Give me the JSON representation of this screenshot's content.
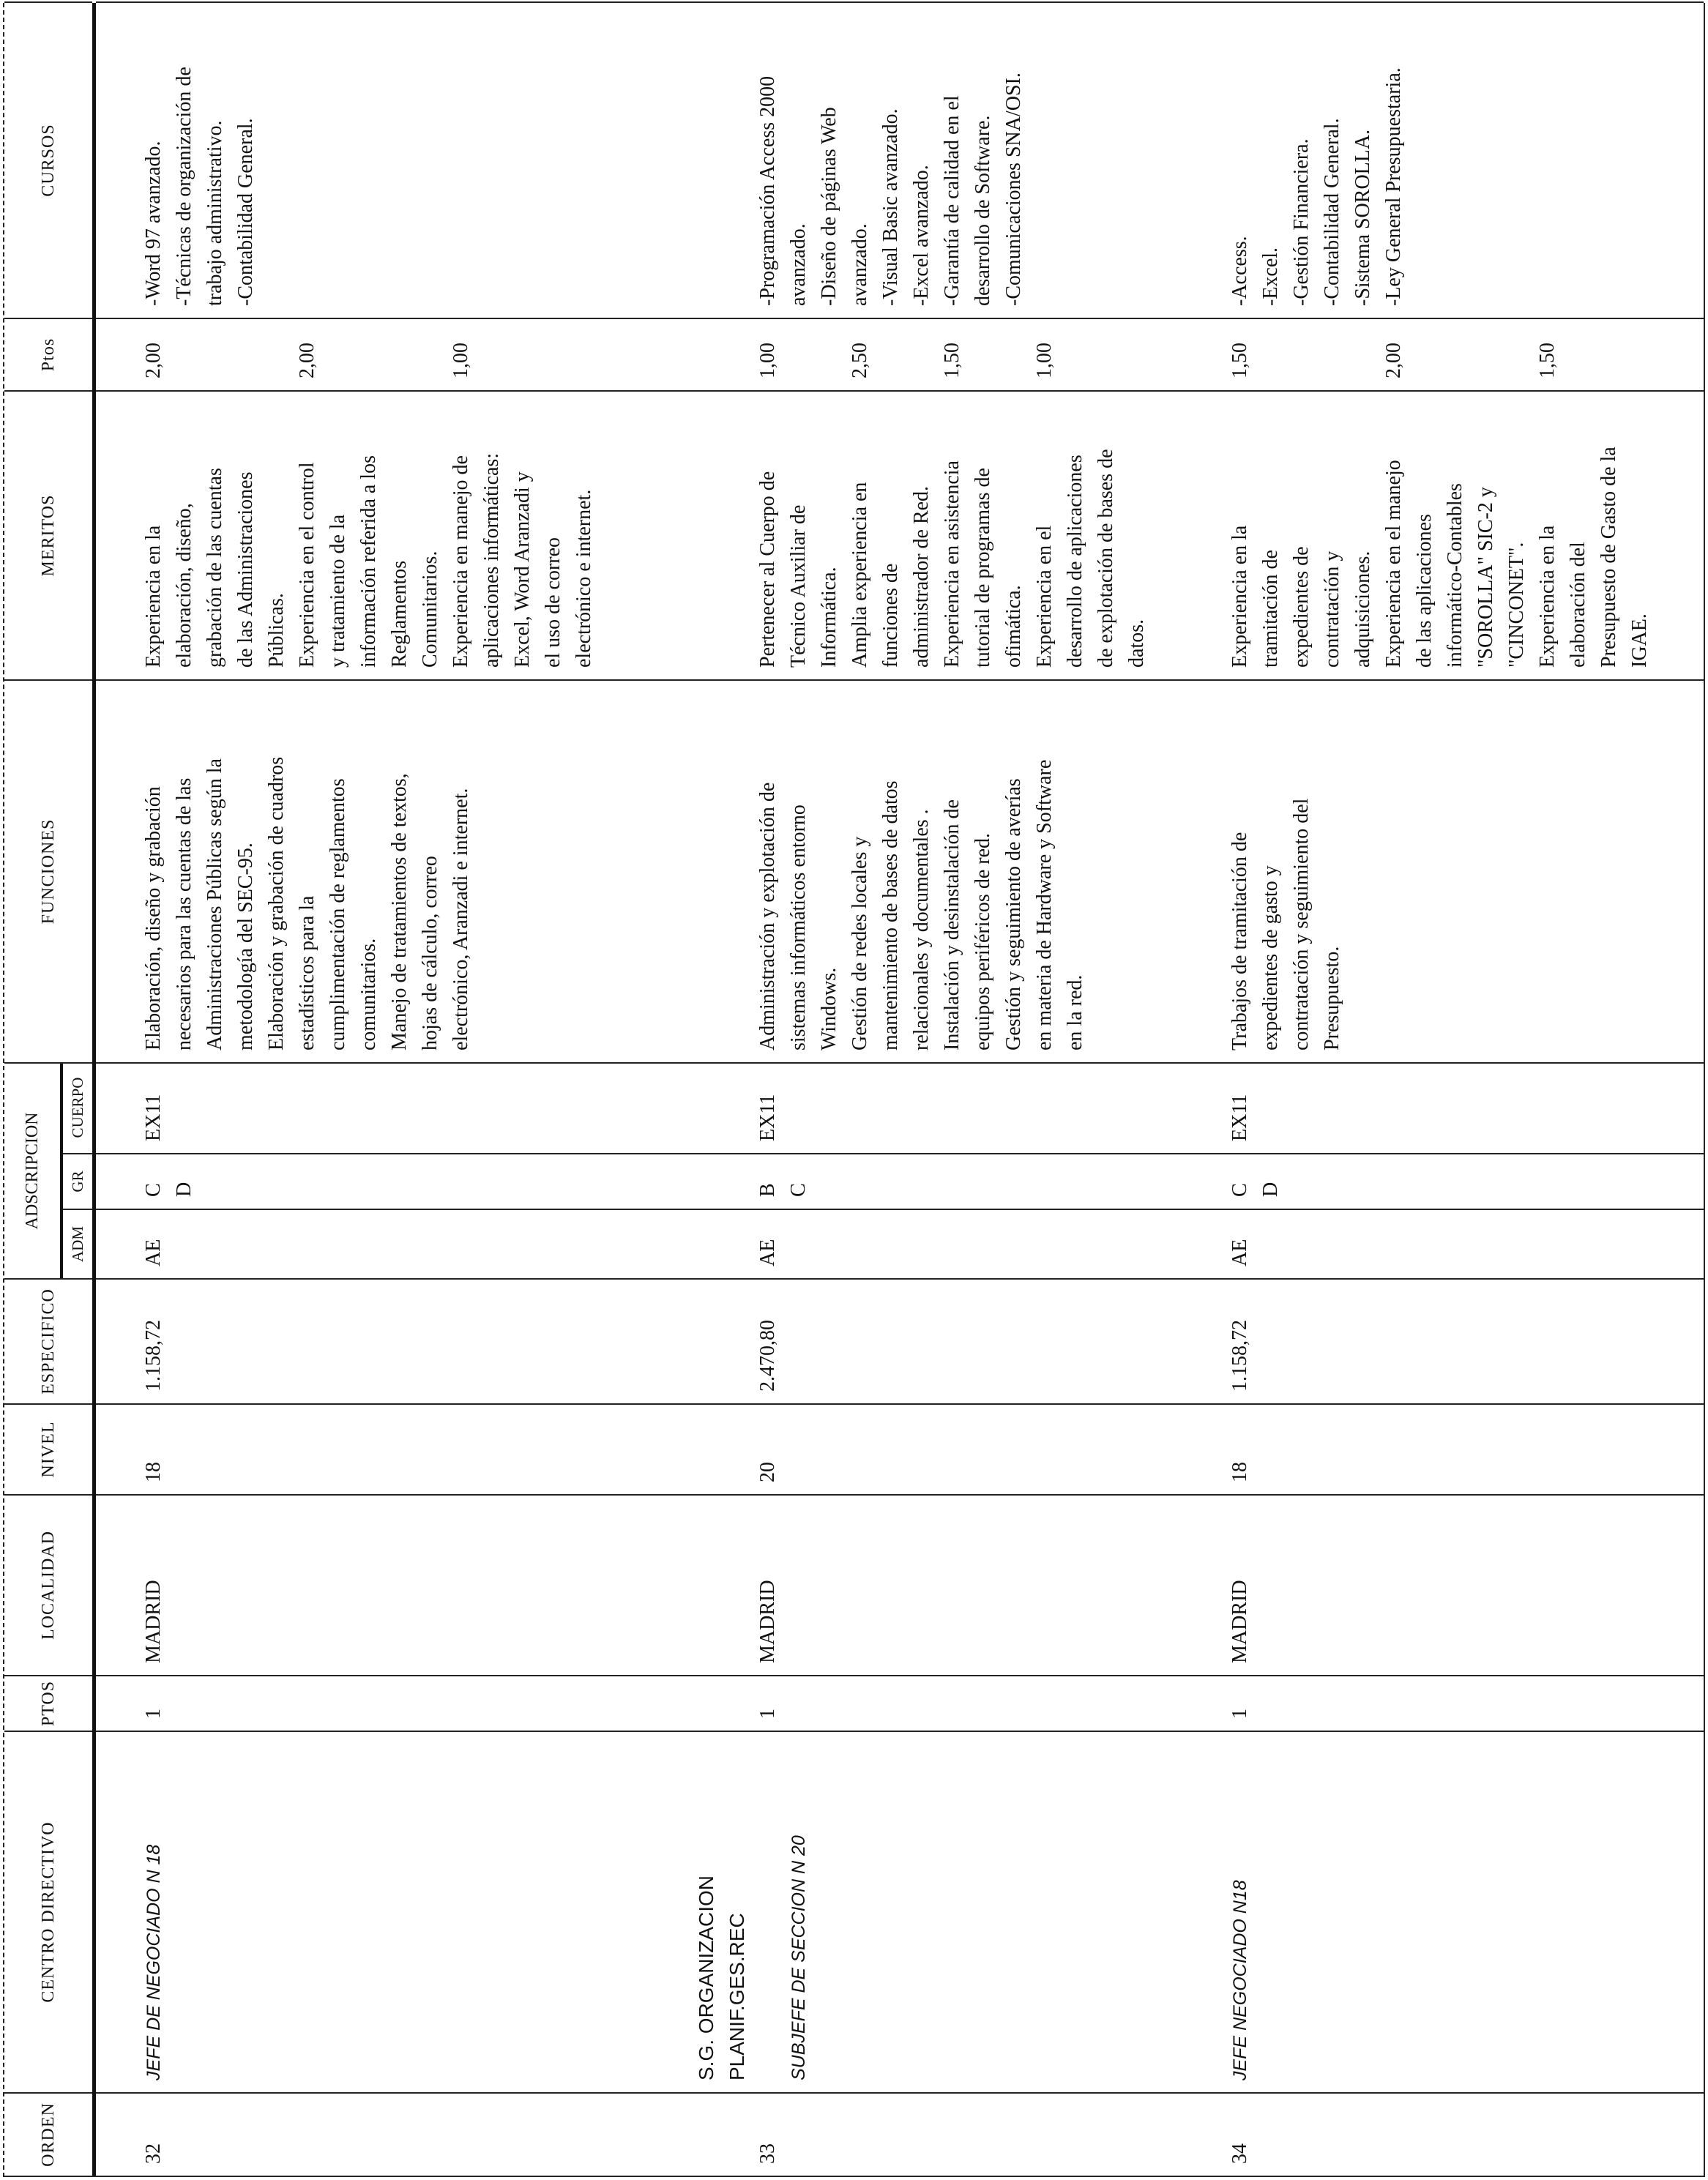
{
  "header": {
    "orden": "ORDEN",
    "centro": "CENTRO DIRECTIVO",
    "ptos": "PTOS",
    "localidad": "LOCALIDAD",
    "nivel": "NIVEL",
    "especifico": "ESPECIFICO",
    "adscripcion": "ADSCRIPCION",
    "adm": "ADM",
    "gr": "GR",
    "cuerpo": "CUERPO",
    "funciones": "FUNCIONES",
    "meritos": "MERITOS",
    "ptos_meritos": "Ptos",
    "cursos": "CURSOS"
  },
  "rows": [
    {
      "orden": "32",
      "org": [],
      "puesto": "JEFE DE NEGOCIADO N 18",
      "ptos": "1",
      "localidad": "MADRID",
      "nivel": "18",
      "especifico": "1.158,72",
      "adm": "AE",
      "gr": [
        "C",
        "D"
      ],
      "cuerpo": "EX11",
      "funciones": [
        "Elaboración, diseño y grabación",
        "necesarios para las cuentas de las",
        "Administraciones Públicas según la",
        "metodología del SEC-95.",
        "Elaboración y grabación de cuadros",
        "estadísticos para la",
        "cumplimentación de reglamentos",
        "comunitarios.",
        "Manejo de tratamientos de textos,",
        "hojas de cálculo, correo",
        "electrónico, Aranzadi e internet."
      ],
      "meritos": [
        {
          "ptos": "2,00",
          "lines": [
            "Experiencia en la",
            "elaboración, diseño,",
            "grabación de las cuentas",
            "de las Administraciones",
            "Públicas."
          ]
        },
        {
          "ptos": "2,00",
          "lines": [
            "Experiencia en el control",
            "y tratamiento de la",
            "información referida a los",
            "Reglamentos",
            "Comunitarios."
          ]
        },
        {
          "ptos": "1,00",
          "lines": [
            "Experiencia en manejo de",
            "aplicaciones informáticas:",
            "Excel, Word Aranzadi y",
            "el uso de correo",
            "electrónico e internet."
          ]
        }
      ],
      "cursos": [
        "-Word 97 avanzado.",
        "-Técnicas de organización de",
        "trabajo administrativo.",
        "-Contabilidad General."
      ]
    },
    {
      "orden": "33",
      "org": [
        "S.G. ORGANIZACION",
        "PLANIF.GES.REC"
      ],
      "puesto": "SUBJEFE DE SECCION N 20",
      "ptos": "1",
      "localidad": "MADRID",
      "nivel": "20",
      "especifico": "2.470,80",
      "adm": "AE",
      "gr": [
        "B",
        "C"
      ],
      "cuerpo": "EX11",
      "funciones": [
        "Administración y explotación de",
        "sistemas informáticos entorno",
        "Windows.",
        "Gestión de redes locales y",
        "mantenimiento de bases de datos",
        "relacionales y documentales .",
        "Instalación y desinstalación de",
        "equipos periféricos de red.",
        "Gestión y seguimiento de averías",
        "en materia de Hardware y Software",
        "en la red."
      ],
      "meritos": [
        {
          "ptos": "1,00",
          "lines": [
            "Pertenecer al Cuerpo de",
            "Técnico Auxiliar de",
            "Informática."
          ]
        },
        {
          "ptos": "2,50",
          "lines": [
            "Amplia experiencia en",
            "funciones de",
            "administrador de Red."
          ]
        },
        {
          "ptos": "1,50",
          "lines": [
            "Experiencia en asistencia",
            "tutorial de programas de",
            "ofimática."
          ]
        },
        {
          "ptos": "1,00",
          "lines": [
            "Experiencia en el",
            "desarrollo de aplicaciones",
            "de explotación de bases de",
            "datos."
          ]
        }
      ],
      "cursos": [
        "-Programación Access 2000",
        "avanzado.",
        "-Diseño de páginas Web",
        "avanzado.",
        "-Visual Basic avanzado.",
        "-Excel avanzado.",
        "-Garantía de calidad en el",
        "desarrollo de Software.",
        "-Comunicaciones SNA/OSI."
      ]
    },
    {
      "orden": "34",
      "org": [],
      "puesto": "JEFE NEGOCIADO N18",
      "ptos": "1",
      "localidad": "MADRID",
      "nivel": "18",
      "especifico": "1.158,72",
      "adm": "AE",
      "gr": [
        "C",
        "D"
      ],
      "cuerpo": "EX11",
      "funciones": [
        "Trabajos de tramitación de",
        "expedientes de gasto y",
        "contratación y seguimiento del",
        "Presupuesto."
      ],
      "meritos": [
        {
          "ptos": "1,50",
          "lines": [
            "Experiencia en la",
            "tramitación de",
            "expedientes de",
            "contratación y",
            "adquisiciones."
          ]
        },
        {
          "ptos": "2,00",
          "lines": [
            "Experiencia en el manejo",
            "de las aplicaciones",
            "informático-Contables",
            "\"SOROLLA\" SIC-2 y",
            "\"CINCONET\"."
          ]
        },
        {
          "ptos": "1,50",
          "lines": [
            "Experiencia en la",
            "elaboración del",
            "Presupuesto de Gasto de la",
            "IGAE."
          ]
        }
      ],
      "cursos": [
        "-Access.",
        "-Excel.",
        "-Gestión Financiera.",
        "-Contabilidad General.",
        "-Sistema SOROLLA.",
        "-Ley General Presupuestaria."
      ]
    }
  ]
}
